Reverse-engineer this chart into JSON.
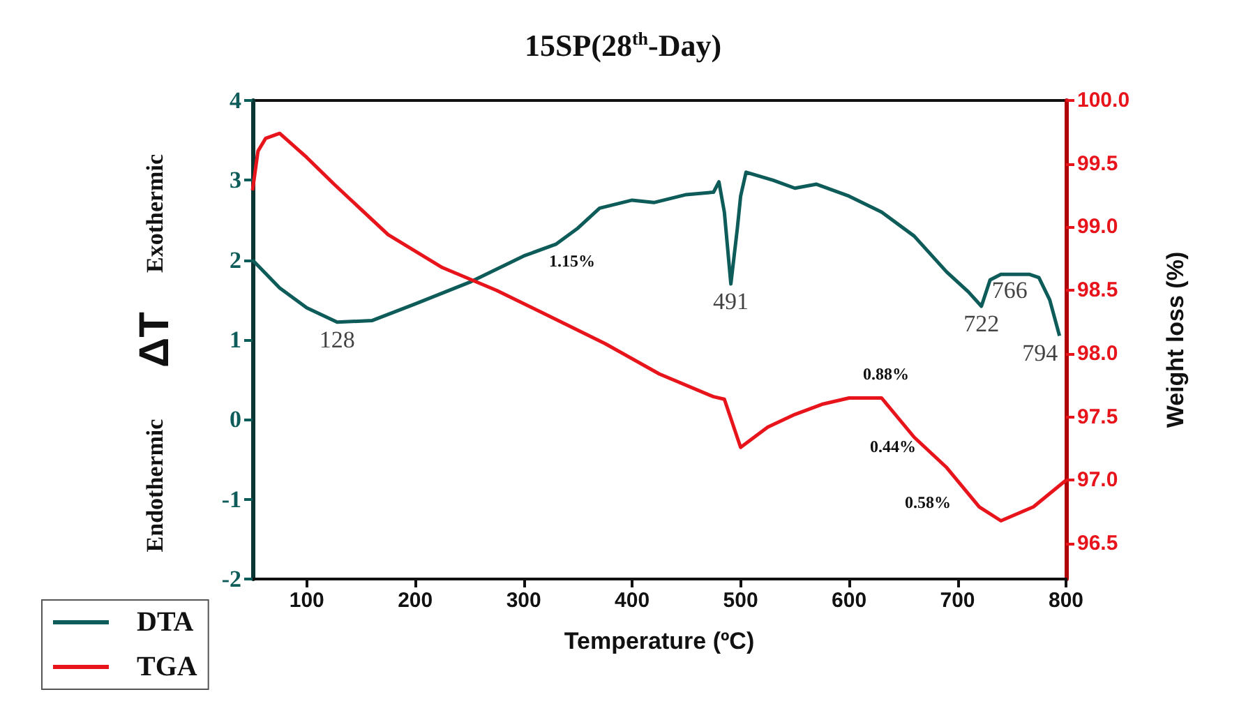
{
  "chart_data": {
    "type": "line",
    "title": "15SP(28$^{th}$-Day)",
    "xlabel": "Temperature (ºC)",
    "ylabel": "ΔT",
    "y2label": "Weight loss (%)",
    "xlim": [
      50,
      800
    ],
    "xticks": [
      100,
      200,
      300,
      400,
      500,
      600,
      700,
      800
    ],
    "ylim": [
      -2,
      4
    ],
    "yticks": [
      -2,
      -1,
      0,
      1,
      2,
      3,
      4
    ],
    "y2lim": [
      96.22,
      100
    ],
    "y2ticks": [
      96.5,
      {
        "value": 97,
        "label": "97.0"
      },
      97.5,
      {
        "value": 98,
        "label": "98.0"
      },
      98.5,
      {
        "value": 99,
        "label": "99.0"
      },
      99.5,
      {
        "value": 100,
        "label": "100.0"
      }
    ],
    "legend": "bottom left",
    "grid": false,
    "marker": "none",
    "line_style": "solid",
    "series": [
      {
        "name": "DTA",
        "color": "#0e5c5a",
        "x": [
          50,
          75,
          100,
          128,
          160,
          200,
          250,
          300,
          330,
          350,
          370,
          400,
          420,
          450,
          475,
          480,
          485,
          491,
          497,
          500,
          505,
          530,
          550,
          570,
          600,
          630,
          660,
          690,
          710,
          722,
          730,
          740,
          766,
          775,
          785,
          794
        ],
        "values": [
          2.0,
          1.65,
          1.4,
          1.22,
          1.24,
          1.45,
          1.72,
          2.05,
          2.2,
          2.4,
          2.65,
          2.75,
          2.72,
          2.82,
          2.85,
          2.98,
          2.6,
          1.7,
          2.4,
          2.8,
          3.1,
          3.0,
          2.9,
          2.95,
          2.8,
          2.6,
          2.3,
          1.85,
          1.6,
          1.42,
          1.75,
          1.82,
          1.82,
          1.78,
          1.5,
          1.05
        ]
      },
      {
        "name": "TGA",
        "color": "#e8141b",
        "axis": "y2",
        "x": [
          50,
          55,
          62,
          75,
          100,
          125,
          175,
          225,
          275,
          325,
          375,
          425,
          475,
          485,
          500,
          525,
          550,
          575,
          600,
          630,
          660,
          690,
          720,
          740,
          770,
          800
        ],
        "values": [
          99.29,
          99.6,
          99.7,
          99.74,
          99.55,
          99.34,
          98.94,
          98.68,
          98.5,
          98.29,
          98.08,
          97.84,
          97.66,
          97.64,
          97.26,
          97.42,
          97.52,
          97.6,
          97.65,
          97.65,
          97.34,
          97.1,
          96.79,
          96.68,
          96.79,
          97.0
        ]
      }
    ],
    "annotations": [
      "Exothermic",
      "Endothermic",
      {
        "text": "128",
        "x": 128,
        "y": 1.22
      },
      {
        "text": "491",
        "x": 491,
        "y": 1.7
      },
      {
        "text": "722",
        "x": 722,
        "y": 1.42
      },
      {
        "text": "766",
        "x": 766,
        "y": 1.84
      },
      {
        "text": "794",
        "x": 794,
        "y": 1.05
      },
      "1.15%",
      "0.88%",
      "0.44%",
      "0.58%"
    ]
  }
}
